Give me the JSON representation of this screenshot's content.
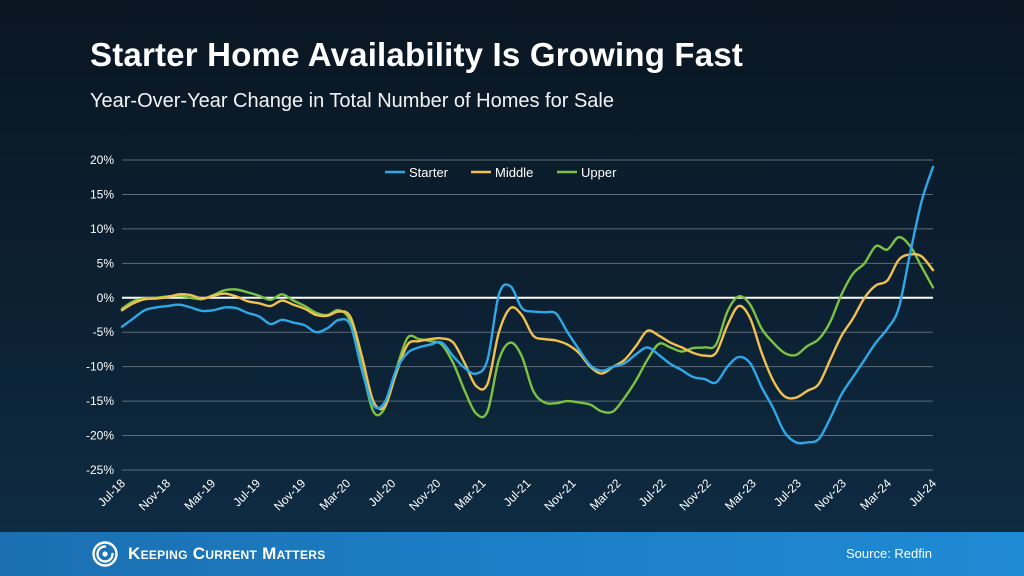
{
  "title": "Starter Home Availability Is Growing Fast",
  "subtitle": "Year-Over-Year Change in Total Number of Homes for Sale",
  "footer": {
    "brand": "Keeping Current Matters",
    "source": "Source: Redfin"
  },
  "colors": {
    "starter": "#2ea8e6",
    "middle": "#f0c050",
    "upper": "#7cc242",
    "zero_line": "#ffffff",
    "grid": "#5d6b7a",
    "footer": "#1c7dc4"
  },
  "chart_data": {
    "type": "line",
    "title": "Starter Home Availability Is Growing Fast",
    "subtitle": "Year-Over-Year Change in Total Number of Homes for Sale",
    "xlabel": "",
    "ylabel": "",
    "ylim": [
      -25,
      20
    ],
    "yticks": [
      20,
      15,
      10,
      5,
      0,
      -5,
      -10,
      -15,
      -20,
      -25
    ],
    "ytick_labels": [
      "20%",
      "15%",
      "10%",
      "5%",
      "0%",
      "-5%",
      "-10%",
      "-15%",
      "-20%",
      "-25%"
    ],
    "xtick_labels": [
      "Jul-18",
      "Nov-18",
      "Mar-19",
      "Jul-19",
      "Nov-19",
      "Mar-20",
      "Jul-20",
      "Nov-20",
      "Mar-21",
      "Jul-21",
      "Nov-21",
      "Mar-22",
      "Jul-22",
      "Nov-22",
      "Mar-23",
      "Jul-23",
      "Nov-23",
      "Mar-24",
      "Jul-24"
    ],
    "x_start": "Jul-18",
    "x_end": "Jul-24",
    "grid": true,
    "legend_position": "top-center",
    "series": [
      {
        "name": "Starter",
        "color": "#2ea8e6",
        "values": [
          -4.2,
          -3.0,
          -1.8,
          -1.4,
          -1.2,
          -1.0,
          -1.4,
          -1.9,
          -1.8,
          -1.4,
          -1.5,
          -2.2,
          -2.7,
          -3.8,
          -3.2,
          -3.6,
          -4.0,
          -5.0,
          -4.4,
          -3.2,
          -4.0,
          -10.5,
          -15.6,
          -15.2,
          -10.5,
          -8.0,
          -7.2,
          -6.8,
          -6.5,
          -8.5,
          -10.2,
          -11.0,
          -9.0,
          0.5,
          1.7,
          -1.5,
          -2.0,
          -2.1,
          -2.3,
          -5.0,
          -7.5,
          -9.8,
          -10.6,
          -10.0,
          -9.5,
          -8.2,
          -7.2,
          -8.3,
          -9.6,
          -10.5,
          -11.5,
          -11.8,
          -12.3,
          -10.0,
          -8.6,
          -9.5,
          -13.0,
          -16.0,
          -19.5,
          -21.0,
          -21.0,
          -20.5,
          -17.5,
          -14.0,
          -11.5,
          -9.0,
          -6.5,
          -4.5,
          -1.5,
          6.5,
          14.0,
          19.0
        ]
      },
      {
        "name": "Middle",
        "color": "#f0c050",
        "values": [
          -1.8,
          -0.8,
          -0.2,
          -0.1,
          0.1,
          0.5,
          0.4,
          -0.1,
          0.3,
          0.6,
          0.2,
          -0.5,
          -0.8,
          -1.2,
          -0.4,
          -1.0,
          -1.6,
          -2.5,
          -2.6,
          -2.0,
          -2.8,
          -8.5,
          -15.0,
          -15.8,
          -11.0,
          -6.8,
          -6.3,
          -6.0,
          -5.9,
          -6.5,
          -9.5,
          -12.8,
          -12.5,
          -5.0,
          -1.5,
          -2.5,
          -5.5,
          -6.0,
          -6.2,
          -6.8,
          -8.0,
          -10.0,
          -11.0,
          -10.0,
          -9.0,
          -7.0,
          -4.8,
          -5.5,
          -6.5,
          -7.2,
          -8.0,
          -8.4,
          -8.0,
          -4.0,
          -1.2,
          -3.0,
          -8.0,
          -12.0,
          -14.3,
          -14.5,
          -13.5,
          -12.5,
          -9.0,
          -5.5,
          -3.0,
          0.0,
          1.8,
          2.5,
          5.5,
          6.3,
          6.0,
          4.0
        ]
      },
      {
        "name": "Upper",
        "color": "#7cc242",
        "values": [
          -1.6,
          -0.5,
          -0.1,
          0.0,
          0.2,
          0.3,
          0.0,
          -0.2,
          0.4,
          1.1,
          1.2,
          0.8,
          0.3,
          -0.3,
          0.5,
          -0.4,
          -1.2,
          -2.2,
          -2.5,
          -1.8,
          -3.5,
          -10.0,
          -16.5,
          -16.0,
          -10.5,
          -5.8,
          -6.0,
          -6.3,
          -6.8,
          -9.5,
          -13.5,
          -16.8,
          -16.5,
          -9.0,
          -6.5,
          -8.5,
          -13.5,
          -15.2,
          -15.3,
          -15.0,
          -15.2,
          -15.5,
          -16.5,
          -16.5,
          -14.5,
          -12.0,
          -9.0,
          -6.7,
          -7.2,
          -7.8,
          -7.3,
          -7.2,
          -6.8,
          -2.0,
          0.2,
          -1.0,
          -4.5,
          -6.5,
          -8.0,
          -8.3,
          -7.0,
          -6.0,
          -3.5,
          0.5,
          3.5,
          5.0,
          7.5,
          7.0,
          8.8,
          7.5,
          4.5,
          1.5
        ]
      }
    ]
  }
}
